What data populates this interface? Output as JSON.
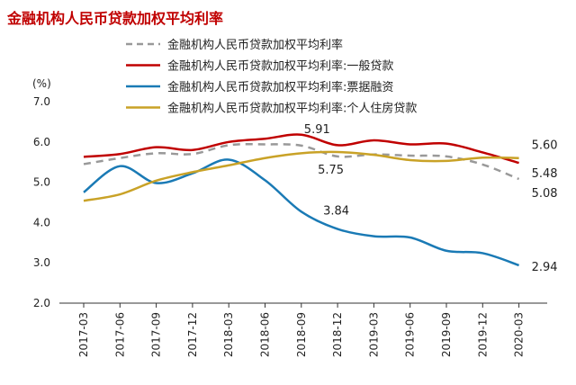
{
  "chart_data": {
    "type": "line",
    "title": "金融机构人民币贷款加权平均利率",
    "title_color": "#c00000",
    "ylabel": "(%)",
    "ylim": [
      2.0,
      7.0
    ],
    "yticks": [
      "7.0",
      "6.0",
      "5.0",
      "4.0",
      "3.0",
      "2.0"
    ],
    "ytick_values": [
      7.0,
      6.0,
      5.0,
      4.0,
      3.0,
      2.0
    ],
    "categories": [
      "2017-03",
      "2017-06",
      "2017-09",
      "2017-12",
      "2018-03",
      "2018-06",
      "2018-09",
      "2018-12",
      "2019-03",
      "2019-06",
      "2019-09",
      "2019-12",
      "2020-03"
    ],
    "grid": false,
    "legend_placement": "top",
    "series": [
      {
        "name": "金融机构人民币贷款加权平均利率",
        "color": "#999999",
        "dash": true,
        "values": [
          5.45,
          5.6,
          5.72,
          5.7,
          5.92,
          5.94,
          5.91,
          5.64,
          5.69,
          5.66,
          5.64,
          5.44,
          5.08
        ]
      },
      {
        "name": "金融机构人民币贷款加权平均利率:一般贷款",
        "color": "#c00000",
        "dash": false,
        "values": [
          5.63,
          5.7,
          5.87,
          5.8,
          6.0,
          6.08,
          6.18,
          5.92,
          6.04,
          5.94,
          5.96,
          5.74,
          5.48
        ]
      },
      {
        "name": "金融机构人民币贷款加权平均利率:票据融资",
        "color": "#1a7ab5",
        "dash": false,
        "values": [
          4.75,
          5.4,
          4.98,
          5.22,
          5.56,
          5.05,
          4.27,
          3.84,
          3.66,
          3.63,
          3.3,
          3.24,
          2.94
        ]
      },
      {
        "name": "金融机构人民币贷款加权平均利率:个人住房贷款",
        "color": "#c9a227",
        "dash": false,
        "values": [
          4.54,
          4.7,
          5.04,
          5.25,
          5.42,
          5.6,
          5.72,
          5.75,
          5.68,
          5.55,
          5.53,
          5.61,
          5.6
        ]
      }
    ],
    "annotations": [
      {
        "text": "5.91",
        "series": 0,
        "index": 6,
        "dx": 3,
        "dy": -14
      },
      {
        "text": "5.75",
        "series": 3,
        "index": 7,
        "dx": -22,
        "dy": 24
      },
      {
        "text": "3.84",
        "series": 2,
        "index": 7,
        "dx": -16,
        "dy": -16
      },
      {
        "text": "5.60",
        "series": 3,
        "index": 12,
        "dx": 14,
        "dy": -10
      },
      {
        "text": "5.48",
        "series": 1,
        "index": 12,
        "dx": 14,
        "dy": 16
      },
      {
        "text": "5.08",
        "series": 0,
        "index": 12,
        "dx": 14,
        "dy": 20
      },
      {
        "text": "2.94",
        "series": 2,
        "index": 12,
        "dx": 14,
        "dy": 6
      }
    ]
  }
}
